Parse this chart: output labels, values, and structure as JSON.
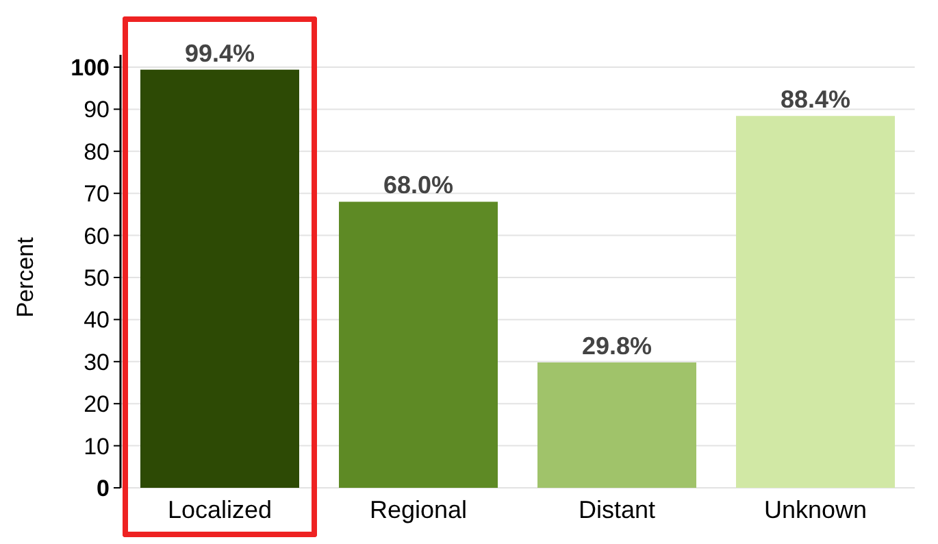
{
  "chart_data": {
    "type": "bar",
    "ylabel": "Percent",
    "categories": [
      "Localized",
      "Regional",
      "Distant",
      "Unknown"
    ],
    "values": [
      99.4,
      68.0,
      29.8,
      88.4
    ],
    "colors": [
      "#2d4a05",
      "#5e8a25",
      "#a0c36a",
      "#d1e8a5"
    ],
    "value_labels": [
      "99.4%",
      "68.0%",
      "29.8%",
      "88.4%"
    ],
    "ylim": [
      0,
      100
    ],
    "yticks": [
      0,
      10,
      20,
      30,
      40,
      50,
      60,
      70,
      80,
      90,
      100
    ],
    "grid": "y"
  }
}
